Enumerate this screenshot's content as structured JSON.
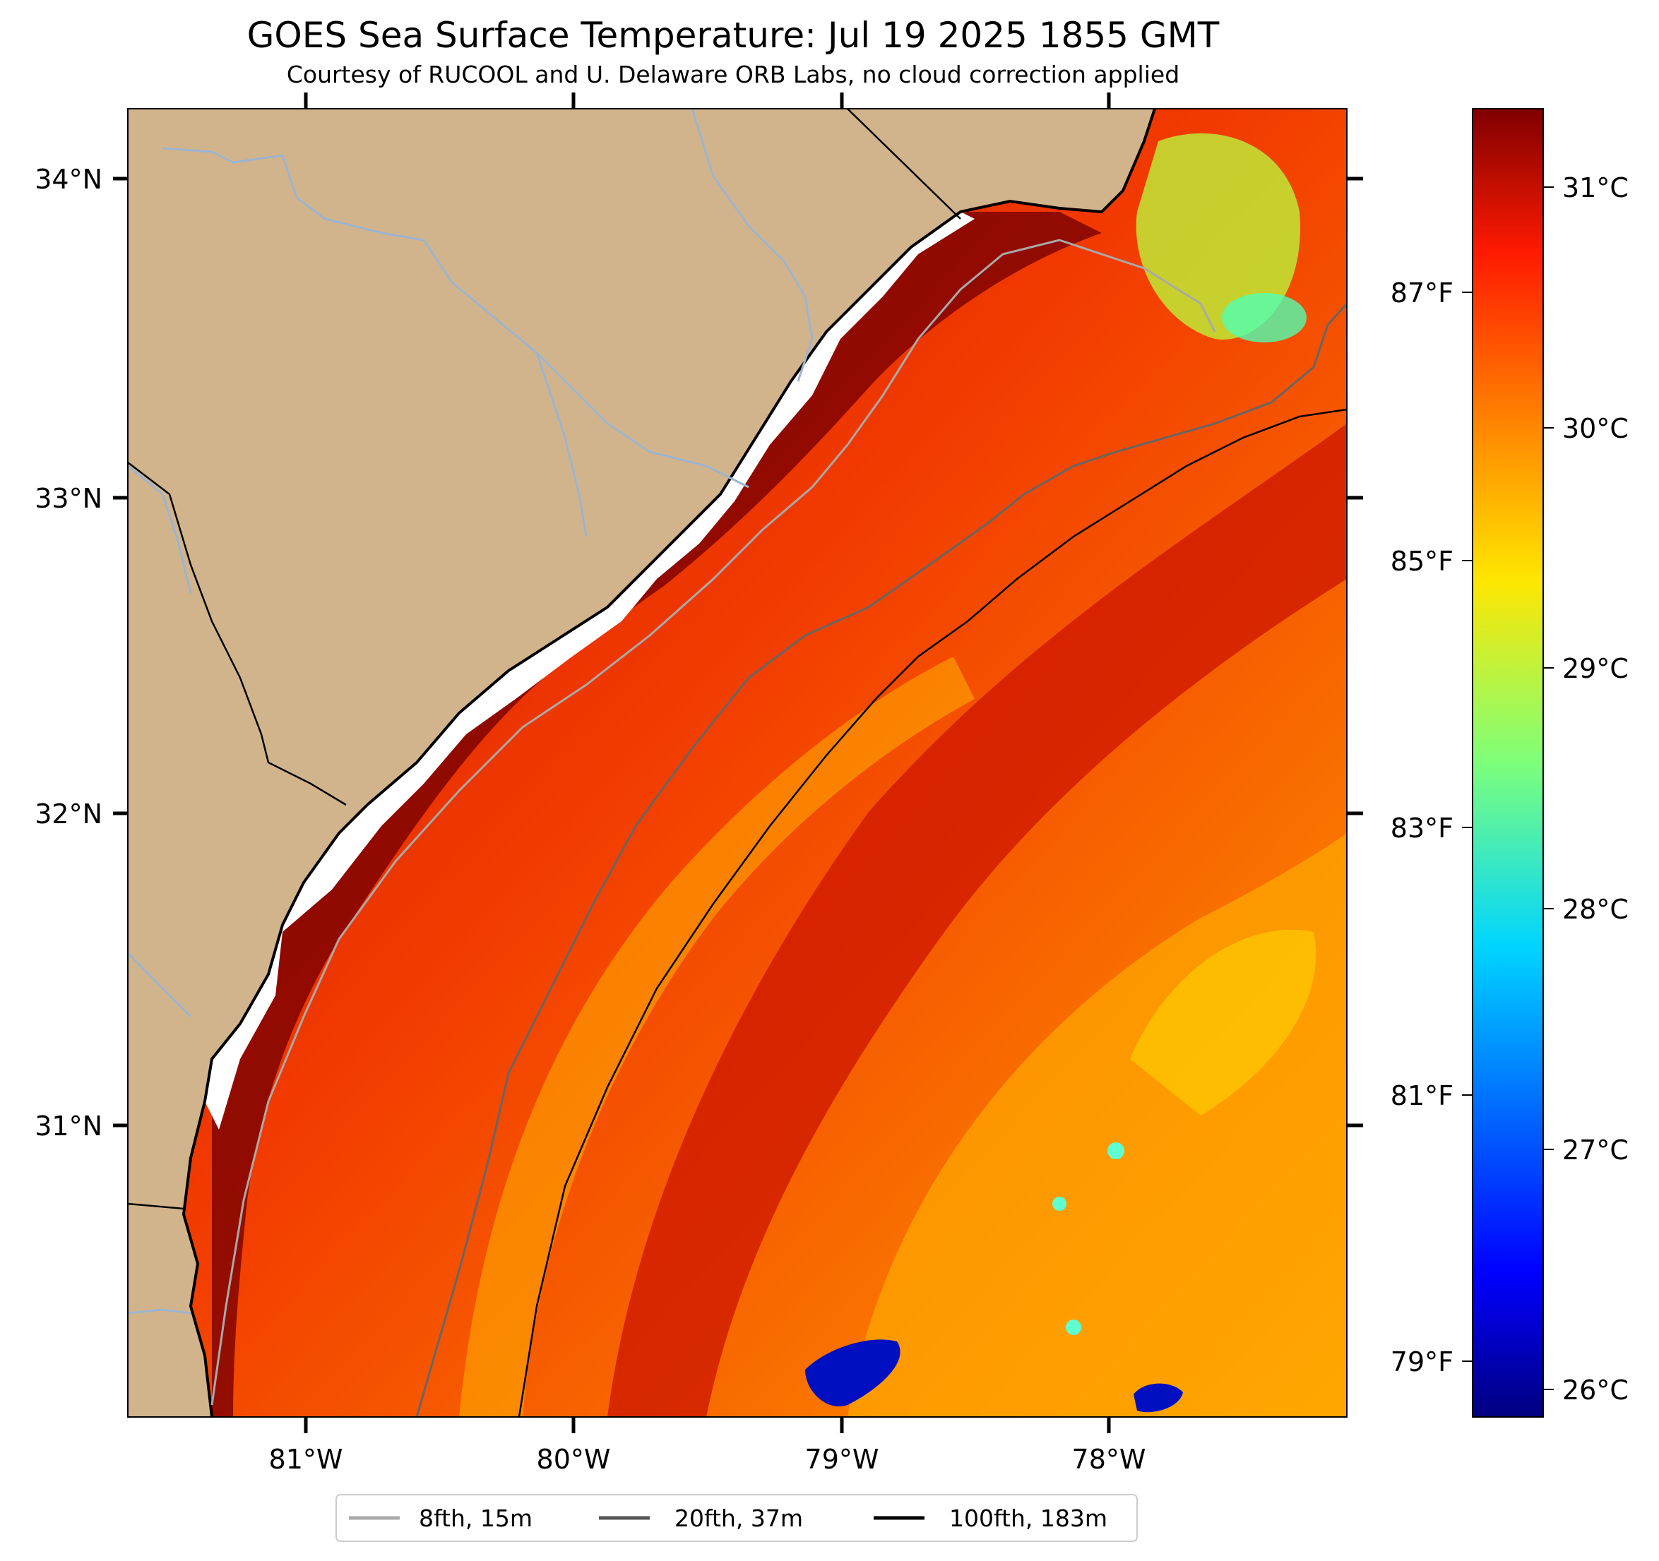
{
  "title": "GOES Sea Surface Temperature: Jul 19 2025 1855 GMT",
  "subtitle": "Courtesy of RUCOOL and U. Delaware ORB Labs, no cloud correction applied",
  "map": {
    "lon_ticks": [
      "81°W",
      "80°W",
      "79°W",
      "78°W"
    ],
    "lat_ticks": [
      "34°N",
      "33°N",
      "32°N",
      "31°N"
    ],
    "land_color": "#d2b48c",
    "coast_color": "#000000",
    "river_color": "#9db4cf"
  },
  "colorbar": {
    "colormap": "jet",
    "celsius_ticks": [
      "31°C",
      "30°C",
      "29°C",
      "28°C",
      "27°C",
      "26°C"
    ],
    "fahrenheit_ticks": [
      "87°F",
      "85°F",
      "83°F",
      "81°F",
      "79°F"
    ]
  },
  "legend": {
    "items": [
      {
        "label": "8fth, 15m",
        "color": "#a9a9a9"
      },
      {
        "label": "20fth, 37m",
        "color": "#555555"
      },
      {
        "label": "100fth, 183m",
        "color": "#000000"
      }
    ]
  }
}
